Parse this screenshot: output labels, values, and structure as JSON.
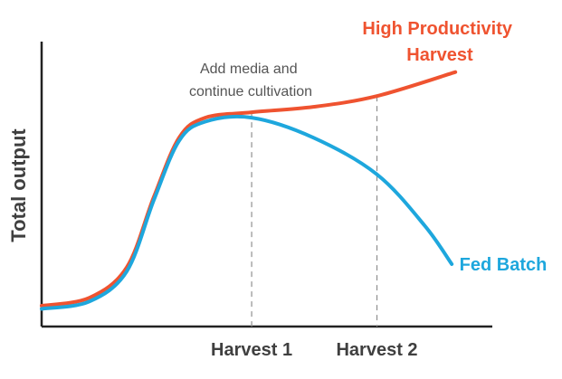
{
  "chart_data": {
    "type": "line",
    "title": "",
    "xlabel": "",
    "ylabel": "Total output",
    "xlim": [
      0,
      100
    ],
    "ylim": [
      0,
      100
    ],
    "grid": false,
    "legend": "inline labels",
    "x_ticks": [
      {
        "label": "Harvest 1",
        "x": 46.6
      },
      {
        "label": "Harvest 2",
        "x": 74.4
      }
    ],
    "annotation": {
      "lines": [
        "Add media and",
        "continue cultivation"
      ]
    },
    "series": [
      {
        "name_lines": [
          "High Productivity",
          "Harvest"
        ],
        "color": "#EF5330",
        "points": [
          {
            "x": 0,
            "y": 7.3
          },
          {
            "x": 10.6,
            "y": 10.1
          },
          {
            "x": 18.9,
            "y": 20.8
          },
          {
            "x": 24.9,
            "y": 45.5
          },
          {
            "x": 30.5,
            "y": 66.3
          },
          {
            "x": 36.3,
            "y": 73.3
          },
          {
            "x": 46.6,
            "y": 75.2
          },
          {
            "x": 60.3,
            "y": 77.1
          },
          {
            "x": 74.4,
            "y": 80.9
          },
          {
            "x": 91.8,
            "y": 89.3
          }
        ]
      },
      {
        "name_lines": [
          "Fed Batch"
        ],
        "color": "#1EA7DD",
        "points": [
          {
            "x": 0,
            "y": 6.2
          },
          {
            "x": 10.6,
            "y": 8.8
          },
          {
            "x": 18.9,
            "y": 19.4
          },
          {
            "x": 24.9,
            "y": 44.4
          },
          {
            "x": 30.5,
            "y": 65.2
          },
          {
            "x": 36.3,
            "y": 71.9
          },
          {
            "x": 46.6,
            "y": 73.3
          },
          {
            "x": 60.3,
            "y": 66.3
          },
          {
            "x": 74.4,
            "y": 53.4
          },
          {
            "x": 85.0,
            "y": 35.4
          },
          {
            "x": 91.0,
            "y": 21.9
          }
        ]
      }
    ]
  }
}
